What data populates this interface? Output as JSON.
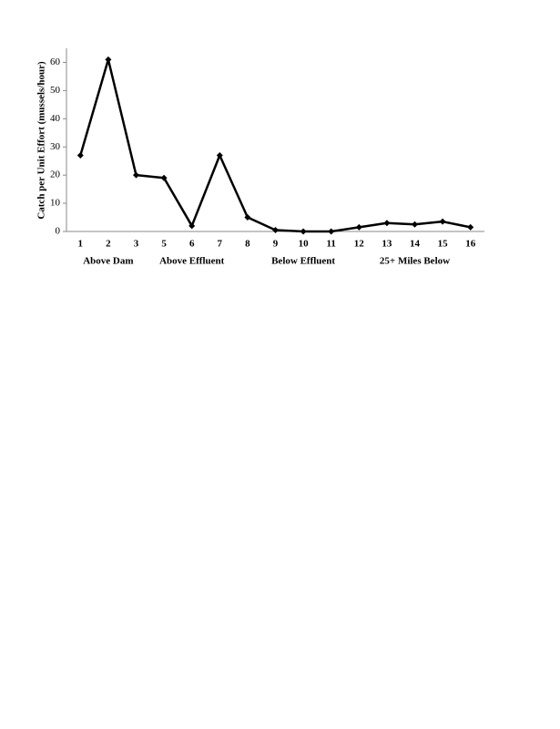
{
  "chart_data": {
    "type": "line",
    "y_label": "Catch per Unit Effort (mussels/hour)",
    "categories": [
      "1",
      "2",
      "3",
      "5",
      "6",
      "7",
      "8",
      "9",
      "10",
      "11",
      "12",
      "13",
      "14",
      "15",
      "16"
    ],
    "values": [
      27,
      61,
      20,
      19,
      2,
      27,
      5,
      0.5,
      0,
      0,
      1.5,
      3,
      2.5,
      3.5,
      1.5
    ],
    "color": "#000000",
    "ylim": [
      0,
      65
    ],
    "yticks": [
      0,
      10,
      20,
      30,
      40,
      50,
      60
    ],
    "groups": [
      "Above Dam",
      "Above Effluent",
      "Below Effluent",
      "25+ Miles Below"
    ]
  }
}
